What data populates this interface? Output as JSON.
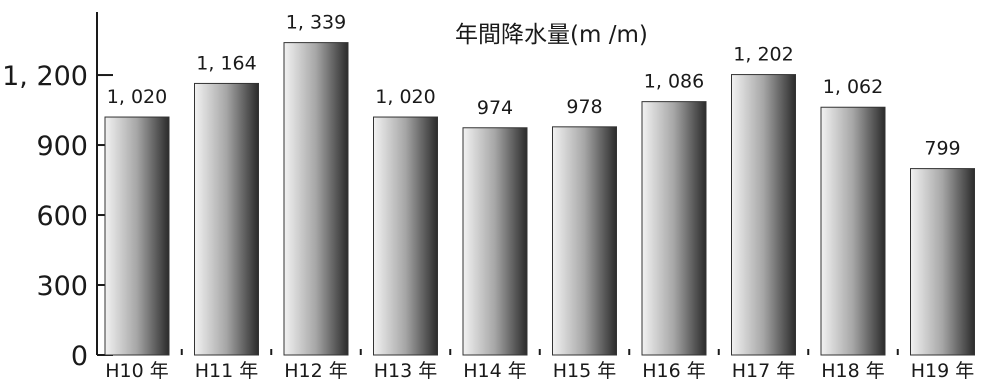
{
  "chart_data": {
    "type": "bar",
    "title": "年間降水量(m /m)",
    "categories": [
      "H10 年",
      "H11 年",
      "H12 年",
      "H13 年",
      "H14 年",
      "H15 年",
      "H16 年",
      "H17 年",
      "H18 年",
      "H19 年"
    ],
    "values": [
      1020,
      1164,
      1339,
      1020,
      974,
      978,
      1086,
      1202,
      1062,
      799
    ],
    "value_labels": [
      "1, 020",
      "1, 164",
      "1, 339",
      "1, 020",
      "974",
      "978",
      "1, 086",
      "1, 202",
      "1, 062",
      "799"
    ],
    "yticks": [
      0,
      300,
      600,
      900,
      1200
    ],
    "ytick_labels": [
      "0",
      "300",
      "600",
      "900",
      "1, 200"
    ],
    "ylim": [
      0,
      1400
    ],
    "grid": false,
    "bar_colors": {
      "light": "#f2f2f2",
      "mid": "#a6a6a6",
      "dark": "#2b2b2b",
      "edge": "#333333"
    }
  }
}
